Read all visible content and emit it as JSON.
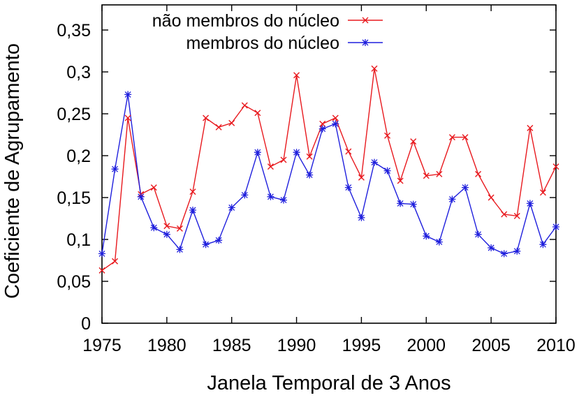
{
  "chart_data": {
    "type": "line",
    "xlabel": "Janela Temporal de 3 Anos",
    "ylabel": "Coeficiente de Agrupamento",
    "xlim": [
      1975,
      2010
    ],
    "ylim": [
      0,
      0.38
    ],
    "x_ticks": [
      1975,
      1980,
      1985,
      1990,
      1995,
      2000,
      2005,
      2010
    ],
    "x_tick_labels": [
      "1975",
      "1980",
      "1985",
      "1990",
      "1995",
      "2000",
      "2005",
      "2010"
    ],
    "y_ticks": [
      0,
      0.05,
      0.1,
      0.15,
      0.2,
      0.25,
      0.3,
      0.35
    ],
    "y_tick_labels": [
      "0",
      "0,05",
      "0,1",
      "0,15",
      "0,2",
      "0,25",
      "0,3",
      "0,35"
    ],
    "legend_position": "top-right",
    "grid": false,
    "x": [
      1975,
      1976,
      1977,
      1978,
      1979,
      1980,
      1981,
      1982,
      1983,
      1984,
      1985,
      1986,
      1987,
      1988,
      1989,
      1990,
      1991,
      1992,
      1993,
      1994,
      1995,
      1996,
      1997,
      1998,
      1999,
      2000,
      2001,
      2002,
      2003,
      2004,
      2005,
      2006,
      2007,
      2008,
      2009,
      2010
    ],
    "series": [
      {
        "name": "não membros do núcleo",
        "color": "#e8191e",
        "marker": "x",
        "values": [
          0.063,
          0.074,
          0.245,
          0.154,
          0.162,
          0.116,
          0.113,
          0.157,
          0.245,
          0.234,
          0.239,
          0.26,
          0.251,
          0.187,
          0.195,
          0.296,
          0.199,
          0.238,
          0.245,
          0.205,
          0.174,
          0.304,
          0.224,
          0.17,
          0.217,
          0.176,
          0.178,
          0.222,
          0.222,
          0.178,
          0.15,
          0.13,
          0.128,
          0.233,
          0.156,
          0.187
        ]
      },
      {
        "name": "membros do núcleo",
        "color": "#1f1fdd",
        "marker": "*",
        "values": [
          0.083,
          0.184,
          0.273,
          0.151,
          0.114,
          0.106,
          0.088,
          0.135,
          0.094,
          0.099,
          0.138,
          0.153,
          0.204,
          0.151,
          0.147,
          0.204,
          0.177,
          0.232,
          0.238,
          0.162,
          0.126,
          0.192,
          0.182,
          0.143,
          0.142,
          0.104,
          0.097,
          0.148,
          0.162,
          0.106,
          0.09,
          0.083,
          0.086,
          0.143,
          0.094,
          0.115
        ]
      }
    ]
  }
}
